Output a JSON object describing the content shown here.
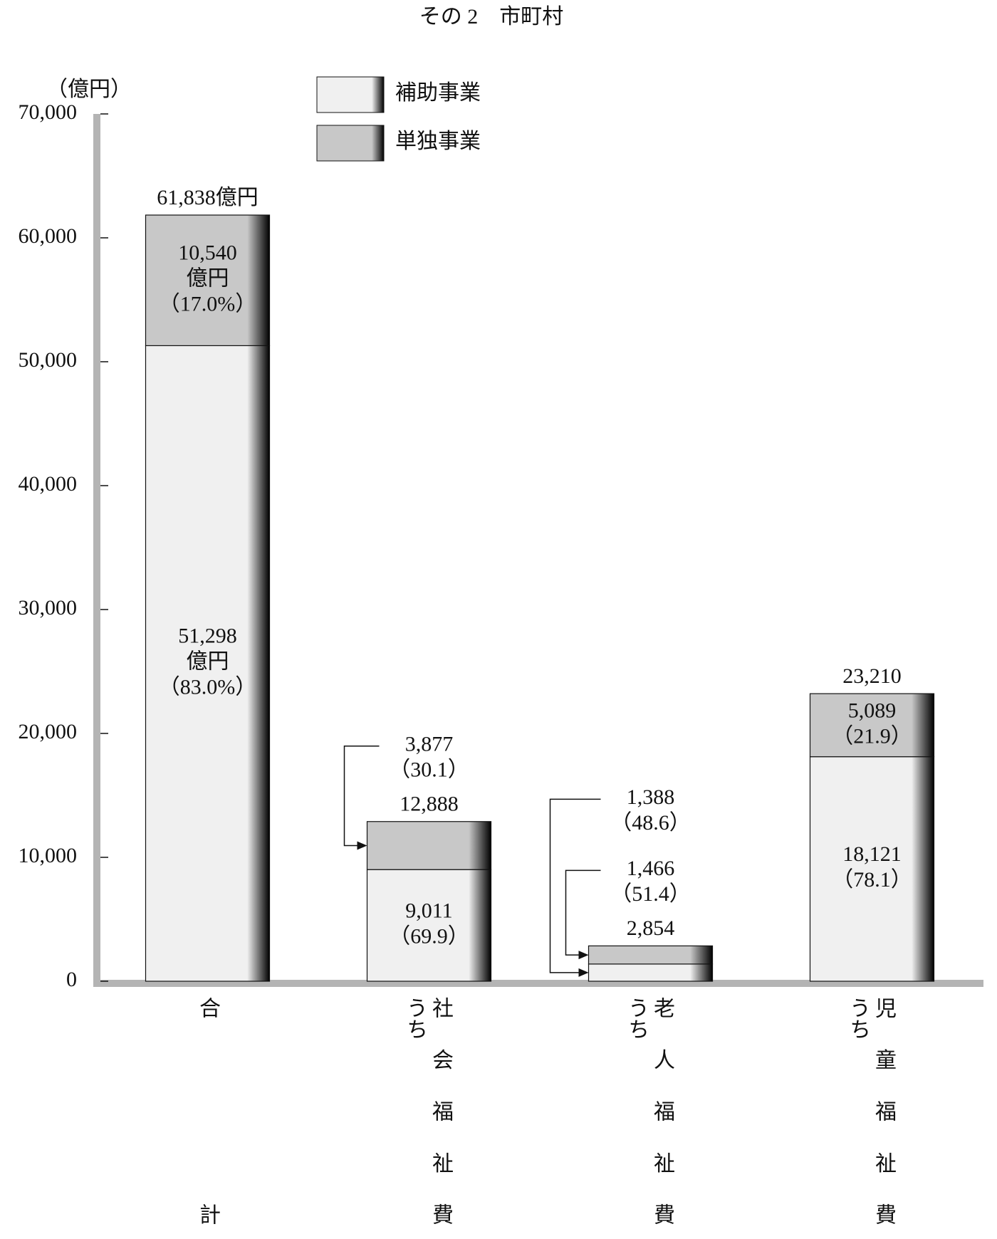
{
  "chart_data": {
    "type": "bar",
    "stacked": true,
    "title": "その 2　市町村",
    "y_unit": "（億円）",
    "categories": [
      "合計",
      "社会福祉費",
      "老人福祉費",
      "児童福祉費"
    ],
    "category_notes": [
      null,
      "うち",
      "うち",
      "うち"
    ],
    "series": [
      {
        "name": "補助事業",
        "color": "#f0f0f0",
        "values": [
          51298,
          9011,
          1388,
          18121
        ],
        "value_labels": [
          [
            "51,298",
            "億円"
          ],
          [
            "9,011"
          ],
          [
            "1,388"
          ],
          [
            "18,121"
          ]
        ],
        "shares": [
          83.0,
          69.9,
          48.6,
          78.1
        ],
        "share_labels": [
          "（83.0%）",
          "（69.9）",
          "（48.6）",
          "（78.1）"
        ]
      },
      {
        "name": "単独事業",
        "color": "#c8c8c8",
        "values": [
          10540,
          3877,
          1466,
          5089
        ],
        "value_labels": [
          [
            "10,540",
            "億円"
          ],
          [
            "3,877"
          ],
          [
            "1,466"
          ],
          [
            "5,089"
          ]
        ],
        "shares": [
          17.0,
          30.1,
          51.4,
          21.9
        ],
        "share_labels": [
          "（17.0%）",
          "（30.1）",
          "（51.4）",
          "（21.9）"
        ]
      }
    ],
    "totals": {
      "values": [
        61838,
        12888,
        2854,
        23210
      ],
      "value_labels": [
        "61,838億円",
        "12,888",
        "2,854",
        "23,210"
      ]
    },
    "ylim": [
      0,
      70000
    ],
    "yticks": [
      0,
      {
        "value": 10000,
        "label": "10,000"
      },
      {
        "value": 20000,
        "label": "20,000"
      },
      {
        "value": 30000,
        "label": "30,000"
      },
      {
        "value": 40000,
        "label": "40,000"
      },
      {
        "value": 50000,
        "label": "50,000"
      },
      {
        "value": 60000,
        "label": "60,000"
      },
      {
        "value": 70000,
        "label": "70,000"
      }
    ],
    "legend": "top-center"
  }
}
